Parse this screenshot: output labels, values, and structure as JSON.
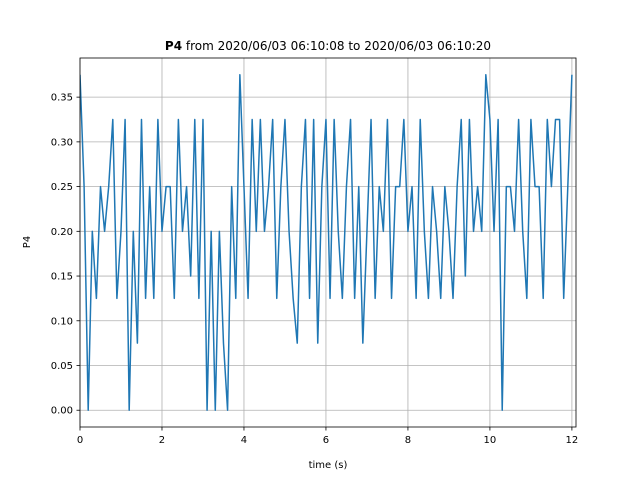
{
  "chart_data": {
    "type": "line",
    "title_bold": "P4",
    "title": "from 2020/06/03 06:10:08 to 2020/06/03 06:10:20",
    "xlabel": "time (s)",
    "ylabel": "P4",
    "x": [
      0.0,
      0.1,
      0.2,
      0.3,
      0.4,
      0.5,
      0.6,
      0.7,
      0.8,
      0.9,
      1.0,
      1.1,
      1.2,
      1.3,
      1.4,
      1.5,
      1.6,
      1.7,
      1.8,
      1.9,
      2.0,
      2.1,
      2.2,
      2.3,
      2.4,
      2.5,
      2.6,
      2.7,
      2.8,
      2.9,
      3.0,
      3.1,
      3.2,
      3.3,
      3.4,
      3.5,
      3.6,
      3.7,
      3.8,
      3.9,
      4.0,
      4.1,
      4.2,
      4.3,
      4.4,
      4.5,
      4.6,
      4.7,
      4.8,
      4.9,
      5.0,
      5.1,
      5.2,
      5.3,
      5.4,
      5.5,
      5.6,
      5.7,
      5.8,
      5.9,
      6.0,
      6.1,
      6.2,
      6.3,
      6.4,
      6.5,
      6.6,
      6.7,
      6.8,
      6.9,
      7.0,
      7.1,
      7.2,
      7.3,
      7.4,
      7.5,
      7.6,
      7.7,
      7.8,
      7.9,
      8.0,
      8.1,
      8.2,
      8.3,
      8.4,
      8.5,
      8.6,
      8.7,
      8.8,
      8.9,
      9.0,
      9.1,
      9.2,
      9.3,
      9.4,
      9.5,
      9.6,
      9.7,
      9.8,
      9.9,
      10.0,
      10.1,
      10.2,
      10.3,
      10.4,
      10.5,
      10.6,
      10.7,
      10.8,
      10.9,
      11.0,
      11.1,
      11.2,
      11.3,
      11.4,
      11.5,
      11.6,
      11.7,
      11.8,
      11.9,
      12.0
    ],
    "series": [
      {
        "name": "P4",
        "color": "#1f77b4",
        "values": [
          0.375,
          0.25,
          0.0,
          0.2,
          0.125,
          0.25,
          0.2,
          0.25,
          0.325,
          0.125,
          0.2,
          0.325,
          0.0,
          0.2,
          0.075,
          0.325,
          0.125,
          0.25,
          0.125,
          0.325,
          0.2,
          0.25,
          0.25,
          0.125,
          0.325,
          0.2,
          0.25,
          0.15,
          0.325,
          0.125,
          0.325,
          0.0,
          0.2,
          0.0,
          0.2,
          0.075,
          0.0,
          0.25,
          0.125,
          0.375,
          0.25,
          0.125,
          0.325,
          0.2,
          0.325,
          0.2,
          0.25,
          0.325,
          0.125,
          0.25,
          0.325,
          0.2,
          0.125,
          0.075,
          0.25,
          0.325,
          0.125,
          0.325,
          0.075,
          0.25,
          0.325,
          0.125,
          0.325,
          0.2,
          0.125,
          0.25,
          0.325,
          0.125,
          0.25,
          0.075,
          0.2,
          0.325,
          0.125,
          0.25,
          0.2,
          0.325,
          0.125,
          0.25,
          0.25,
          0.325,
          0.2,
          0.25,
          0.125,
          0.325,
          0.2,
          0.125,
          0.25,
          0.2,
          0.125,
          0.25,
          0.2,
          0.125,
          0.25,
          0.325,
          0.15,
          0.325,
          0.2,
          0.25,
          0.2,
          0.375,
          0.325,
          0.2,
          0.325,
          0.0,
          0.25,
          0.25,
          0.2,
          0.325,
          0.2,
          0.125,
          0.325,
          0.25,
          0.25,
          0.125,
          0.325,
          0.25,
          0.325,
          0.325,
          0.125,
          0.25,
          0.375
        ]
      }
    ],
    "xlim": [
      0,
      12.1
    ],
    "ylim": [
      -0.01875,
      0.39375
    ],
    "xticks": [
      0,
      2,
      4,
      6,
      8,
      10,
      12
    ],
    "yticks": [
      {
        "value": 0,
        "label": "0.00"
      },
      {
        "value": 0.05,
        "label": "0.05"
      },
      {
        "value": 0.1,
        "label": "0.10"
      },
      {
        "value": 0.15,
        "label": "0.15"
      },
      {
        "value": 0.2,
        "label": "0.20"
      },
      {
        "value": 0.25,
        "label": "0.25"
      },
      {
        "value": 0.3,
        "label": "0.30"
      },
      {
        "value": 0.35,
        "label": "0.35"
      }
    ],
    "grid": true
  }
}
